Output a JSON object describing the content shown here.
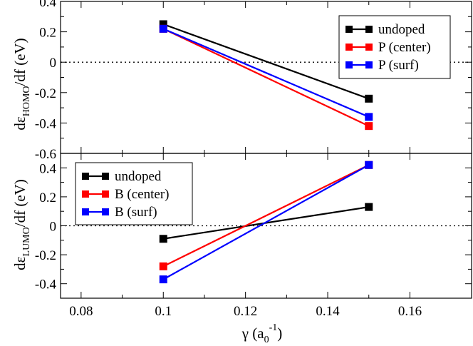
{
  "chart_data": [
    {
      "type": "line",
      "panel": "top",
      "ylabel": {
        "pre": "dε",
        "sub": "HOMO",
        "post": "/df (eV)"
      },
      "xlim": [
        0.075,
        0.175
      ],
      "ylim": [
        -0.6,
        0.4
      ],
      "yticks": [
        0.4,
        0.2,
        0,
        -0.2,
        -0.4,
        -0.6
      ],
      "ytick_labels": [
        "0.4",
        "0.2",
        "0",
        "-0.2",
        "-0.4",
        "-0.6"
      ],
      "x": [
        0.1,
        0.15
      ],
      "zero_line": "dotted",
      "legend_position": "top-right",
      "series": [
        {
          "name": "undoped",
          "color": "#000000",
          "values": [
            0.25,
            -0.24
          ]
        },
        {
          "name": "P (center)",
          "color": "#ff0000",
          "values": [
            0.22,
            -0.42
          ]
        },
        {
          "name": "P (surf)",
          "color": "#0000ff",
          "values": [
            0.22,
            -0.36
          ]
        }
      ]
    },
    {
      "type": "line",
      "panel": "bottom",
      "ylabel": {
        "pre": "dε",
        "sub": "LUMO",
        "post": "/df (eV)"
      },
      "xlim": [
        0.075,
        0.175
      ],
      "ylim": [
        -0.5,
        0.5
      ],
      "yticks": [
        0.4,
        0.2,
        0,
        -0.2,
        -0.4
      ],
      "ytick_labels": [
        "0.4",
        "0.2",
        "0",
        "-0.2",
        "-0.4"
      ],
      "x": [
        0.1,
        0.15
      ],
      "zero_line": "dotted",
      "legend_position": "top-left",
      "series": [
        {
          "name": "undoped",
          "color": "#000000",
          "values": [
            -0.09,
            0.13
          ]
        },
        {
          "name": "B (center)",
          "color": "#ff0000",
          "values": [
            -0.28,
            0.42
          ]
        },
        {
          "name": "B (surf)",
          "color": "#0000ff",
          "values": [
            -0.37,
            0.42
          ]
        }
      ]
    }
  ],
  "x_axis": {
    "ticks": [
      0.08,
      0.1,
      0.12,
      0.14,
      0.16
    ],
    "tick_labels": [
      "0.08",
      "0.1",
      "0.12",
      "0.14",
      "0.16"
    ],
    "label": {
      "pre": "γ (a",
      "sub": "0",
      "sup": "-1",
      "post": ")"
    }
  }
}
